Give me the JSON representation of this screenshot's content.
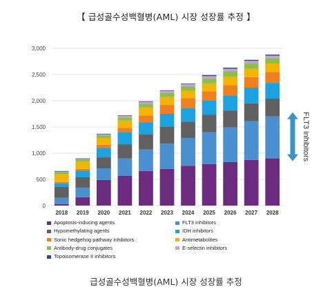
{
  "header": {
    "title": "【 급성골수성백혈병(AML) 시장 성장률 추정 】"
  },
  "caption": {
    "text": "급성골수성백혈병(AML) 시장 성장률 추정"
  },
  "annotation": {
    "text": "FLT3 inhibitors"
  },
  "chart_data": {
    "type": "bar",
    "stacked": true,
    "categories": [
      "2018",
      "2019",
      "2020",
      "2021",
      "2022",
      "2023",
      "2024",
      "2025",
      "2026",
      "2027",
      "2028"
    ],
    "ylim": [
      0,
      3000
    ],
    "yticks": [
      "0",
      "500",
      "1,000",
      "1,500",
      "2,000",
      "2,500",
      "3,000"
    ],
    "ytick_values": [
      0,
      500,
      1000,
      1500,
      2000,
      2500,
      3000
    ],
    "grid": true,
    "legend_position": "bottom",
    "series": [
      {
        "name": "Apoptosis-inducing agents",
        "color": "#6b2c7f",
        "values": [
          30,
          160,
          490,
          570,
          660,
          700,
          760,
          790,
          830,
          870,
          900
        ]
      },
      {
        "name": "FLT3 inhibitors",
        "color": "#4a8fd0",
        "values": [
          120,
          180,
          220,
          330,
          410,
          480,
          530,
          610,
          660,
          740,
          800
        ]
      },
      {
        "name": "Hypomethylating agents",
        "color": "#606060",
        "values": [
          210,
          200,
          210,
          270,
          290,
          320,
          310,
          330,
          320,
          340,
          340
        ]
      },
      {
        "name": "IDH inhibitors",
        "color": "#1aa3e0",
        "values": [
          70,
          130,
          180,
          230,
          230,
          250,
          260,
          270,
          290,
          300,
          300
        ]
      },
      {
        "name": "Sonic hedgehog pathway inhibitors",
        "color": "#f07f1e",
        "values": [
          20,
          30,
          60,
          80,
          130,
          170,
          190,
          180,
          200,
          200,
          210
        ]
      },
      {
        "name": "Antimetabolites",
        "color": "#f5b400",
        "values": [
          150,
          140,
          130,
          140,
          150,
          150,
          140,
          150,
          160,
          160,
          160
        ]
      },
      {
        "name": "Antibody-drug conjugates",
        "color": "#8cc045",
        "values": [
          40,
          40,
          50,
          60,
          70,
          80,
          80,
          90,
          100,
          100,
          100
        ]
      },
      {
        "name": "E-selectin inhibitors",
        "color": "#c8a0d8",
        "values": [
          10,
          10,
          20,
          30,
          40,
          40,
          50,
          50,
          50,
          50,
          50
        ]
      },
      {
        "name": "Topoisomerase II inhibitors",
        "color": "#2b4f7a",
        "values": [
          10,
          10,
          10,
          10,
          10,
          10,
          10,
          20,
          20,
          20,
          20
        ]
      }
    ]
  }
}
